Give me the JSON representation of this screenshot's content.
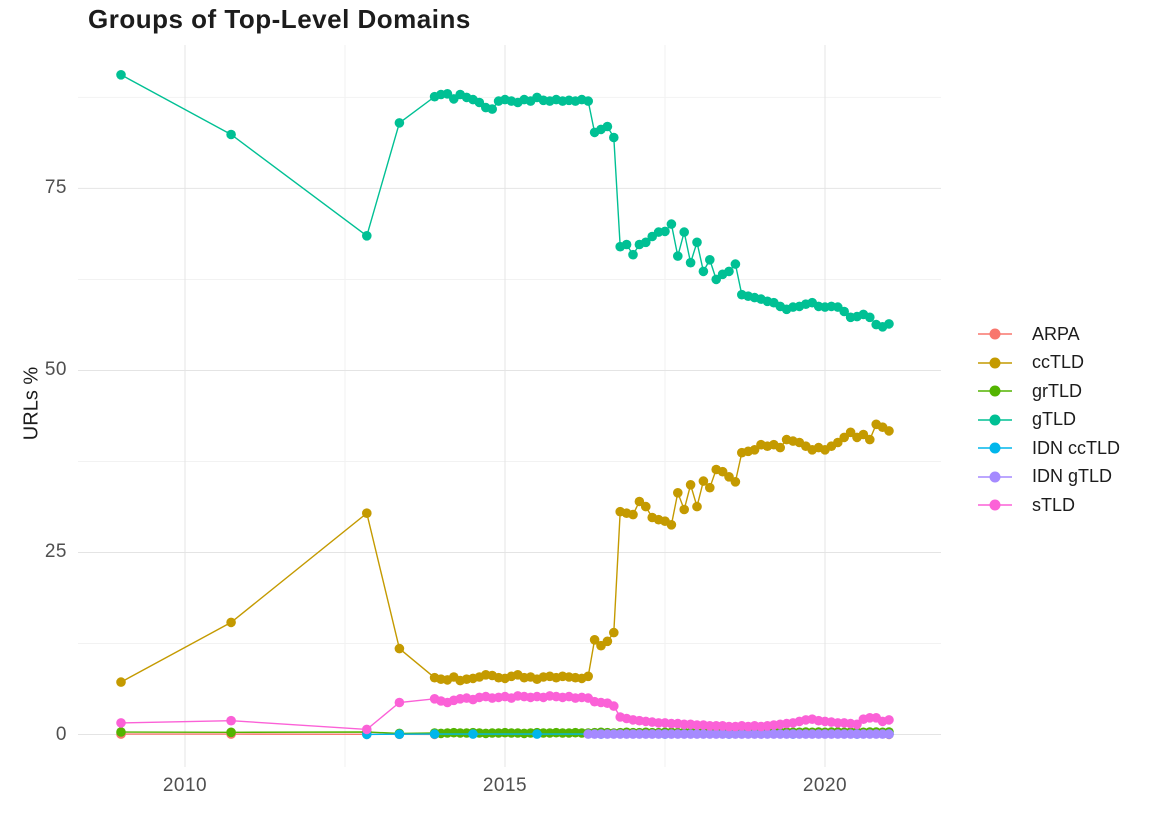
{
  "title": "Groups of Top-Level Domains",
  "axes": {
    "x": {
      "tick_labels": [
        "2010",
        "2015",
        "2020"
      ],
      "tick_values": [
        2010,
        2015,
        2020
      ],
      "minor_values": [
        2012.5,
        2017.5
      ]
    },
    "y": {
      "label": "URLs %",
      "tick_labels": [
        "0",
        "25",
        "50",
        "75"
      ],
      "tick_values": [
        0,
        25,
        50,
        75
      ],
      "minor_values": [
        12.5,
        37.5,
        62.5,
        87.5
      ]
    }
  },
  "legend": {
    "items": [
      {
        "label": "ARPA",
        "color": "#F8766D"
      },
      {
        "label": "ccTLD",
        "color": "#C49A00"
      },
      {
        "label": "grTLD",
        "color": "#53B400"
      },
      {
        "label": "gTLD",
        "color": "#00C094"
      },
      {
        "label": "IDN ccTLD",
        "color": "#00B6EB"
      },
      {
        "label": "IDN gTLD",
        "color": "#A58AFF"
      },
      {
        "label": "sTLD",
        "color": "#FB61D7"
      }
    ]
  },
  "chart_data": {
    "type": "line",
    "title": "Groups of Top-Level Domains",
    "xlabel": "",
    "ylabel": "URLs %",
    "xlim": [
      2008.3,
      2021.8
    ],
    "ylim": [
      -4.5,
      94.5
    ],
    "x_ticks": [
      2010,
      2015,
      2020
    ],
    "y_ticks": [
      0,
      25,
      50,
      75
    ],
    "grid": "major+minor",
    "legend_position": "right",
    "series": [
      {
        "name": "ARPA",
        "color": "#F8766D",
        "points": [
          [
            2009,
            0.05
          ],
          [
            2010.72,
            0.05
          ],
          [
            2012.84,
            0.03
          ],
          [
            2013.35,
            0.03
          ],
          [
            2013.9,
            0.02
          ],
          [
            2021,
            0.02
          ]
        ]
      },
      {
        "name": "ccTLD",
        "color": "#C49A00",
        "sparse": [
          [
            2009,
            7.2
          ],
          [
            2010.72,
            15.4
          ],
          [
            2012.84,
            30.4
          ],
          [
            2013.35,
            11.8
          ]
        ],
        "dense": {
          "x0": 2013.9,
          "dx": 0.1,
          "values": [
            7.8,
            7.6,
            7.5,
            7.9,
            7.4,
            7.6,
            7.7,
            7.9,
            8.2,
            8.1,
            7.8,
            7.7,
            8.0,
            8.2,
            7.8,
            7.9,
            7.6,
            7.9,
            8.0,
            7.8,
            8.0,
            7.9,
            7.8,
            7.7,
            8.0,
            13.0,
            12.2,
            12.8,
            14.0,
            30.6,
            30.4,
            30.2,
            32.0,
            31.3,
            29.8,
            29.5,
            29.3,
            28.8,
            33.2,
            30.9,
            34.3,
            31.3,
            34.8,
            33.9,
            36.4,
            36.1,
            35.4,
            34.7,
            38.7,
            38.9,
            39.1,
            39.8,
            39.6,
            39.8,
            39.4,
            40.5,
            40.3,
            40.1,
            39.6,
            39.1,
            39.4,
            39.1,
            39.6,
            40.1,
            40.8,
            41.5,
            40.8,
            41.2,
            40.5,
            42.6,
            42.2,
            41.7
          ]
        }
      },
      {
        "name": "grTLD",
        "color": "#53B400",
        "sparse": [
          [
            2009,
            0.35
          ],
          [
            2010.72,
            0.3
          ],
          [
            2012.84,
            0.35
          ],
          [
            2013.35,
            0.15
          ]
        ],
        "dense": {
          "x0": 2013.9,
          "dx": 0.1,
          "values": [
            0.2,
            0.15,
            0.2,
            0.25,
            0.2,
            0.2,
            0.25,
            0.2,
            0.15,
            0.2,
            0.2,
            0.25,
            0.2,
            0.2,
            0.15,
            0.2,
            0.25,
            0.2,
            0.2,
            0.25,
            0.2,
            0.2,
            0.25,
            0.2,
            0.2,
            0.25,
            0.3,
            0.25,
            0.2,
            0.25,
            0.3,
            0.25,
            0.25,
            0.3,
            0.25,
            0.25,
            0.3,
            0.3,
            0.25,
            0.3,
            0.3,
            0.25,
            0.3,
            0.3,
            0.25,
            0.3,
            0.3,
            0.3,
            0.25,
            0.3,
            0.3,
            0.3,
            0.35,
            0.3,
            0.3,
            0.35,
            0.3,
            0.3,
            0.35,
            0.3,
            0.35,
            0.3,
            0.35,
            0.35,
            0.3,
            0.35,
            0.35,
            0.3,
            0.35,
            0.35,
            0.3,
            0.35
          ]
        }
      },
      {
        "name": "gTLD",
        "color": "#00C094",
        "sparse": [
          [
            2009,
            90.6
          ],
          [
            2010.72,
            82.4
          ],
          [
            2012.84,
            68.5
          ],
          [
            2013.35,
            84.0
          ]
        ],
        "dense": {
          "x0": 2013.9,
          "dx": 0.1,
          "values": [
            87.6,
            87.9,
            88.0,
            87.3,
            87.9,
            87.5,
            87.2,
            86.8,
            86.1,
            85.9,
            87.0,
            87.2,
            87.0,
            86.8,
            87.2,
            87.0,
            87.5,
            87.1,
            87.0,
            87.2,
            87.0,
            87.1,
            87.0,
            87.2,
            87.0,
            82.7,
            83.1,
            83.5,
            82.0,
            67.0,
            67.3,
            65.9,
            67.3,
            67.6,
            68.4,
            69.0,
            69.1,
            70.1,
            65.7,
            69.0,
            64.8,
            67.6,
            63.6,
            65.2,
            62.5,
            63.2,
            63.6,
            64.6,
            60.4,
            60.2,
            60.0,
            59.8,
            59.5,
            59.3,
            58.8,
            58.4,
            58.7,
            58.8,
            59.1,
            59.3,
            58.8,
            58.7,
            58.8,
            58.7,
            58.1,
            57.3,
            57.4,
            57.7,
            57.3,
            56.3,
            56.0,
            56.4
          ]
        }
      },
      {
        "name": "IDN ccTLD",
        "color": "#00B6EB",
        "points": [
          [
            2012.84,
            0.02
          ],
          [
            2013.35,
            0.04
          ],
          [
            2013.9,
            0.05
          ],
          [
            2014.5,
            0.05
          ],
          [
            2015.5,
            0.05
          ],
          [
            2016.5,
            0.05
          ],
          [
            2017.5,
            0.05
          ],
          [
            2018.5,
            0.05
          ],
          [
            2019.5,
            0.05
          ],
          [
            2020.5,
            0.05
          ],
          [
            2021,
            0.05
          ]
        ]
      },
      {
        "name": "IDN gTLD",
        "color": "#A58AFF",
        "dense": {
          "x0": 2016.3,
          "dx": 0.1,
          "n": 48,
          "value": 0.05
        }
      },
      {
        "name": "sTLD",
        "color": "#FB61D7",
        "sparse": [
          [
            2009,
            1.6
          ],
          [
            2010.72,
            1.9
          ],
          [
            2012.84,
            0.7
          ],
          [
            2013.35,
            4.4
          ]
        ],
        "dense": {
          "x0": 2013.9,
          "dx": 0.1,
          "values": [
            4.9,
            4.6,
            4.4,
            4.7,
            4.9,
            5.0,
            4.8,
            5.1,
            5.2,
            5.0,
            5.1,
            5.2,
            5.0,
            5.3,
            5.2,
            5.1,
            5.2,
            5.1,
            5.3,
            5.2,
            5.1,
            5.2,
            5.0,
            5.1,
            5.0,
            4.5,
            4.4,
            4.3,
            3.9,
            2.4,
            2.2,
            2.0,
            1.9,
            1.8,
            1.7,
            1.6,
            1.6,
            1.5,
            1.5,
            1.4,
            1.4,
            1.3,
            1.3,
            1.2,
            1.2,
            1.2,
            1.1,
            1.1,
            1.2,
            1.1,
            1.2,
            1.1,
            1.2,
            1.3,
            1.4,
            1.5,
            1.6,
            1.8,
            2.0,
            2.1,
            1.9,
            1.8,
            1.7,
            1.6,
            1.6,
            1.5,
            1.4,
            2.1,
            2.3,
            2.3,
            1.8,
            2.0
          ]
        }
      }
    ]
  }
}
